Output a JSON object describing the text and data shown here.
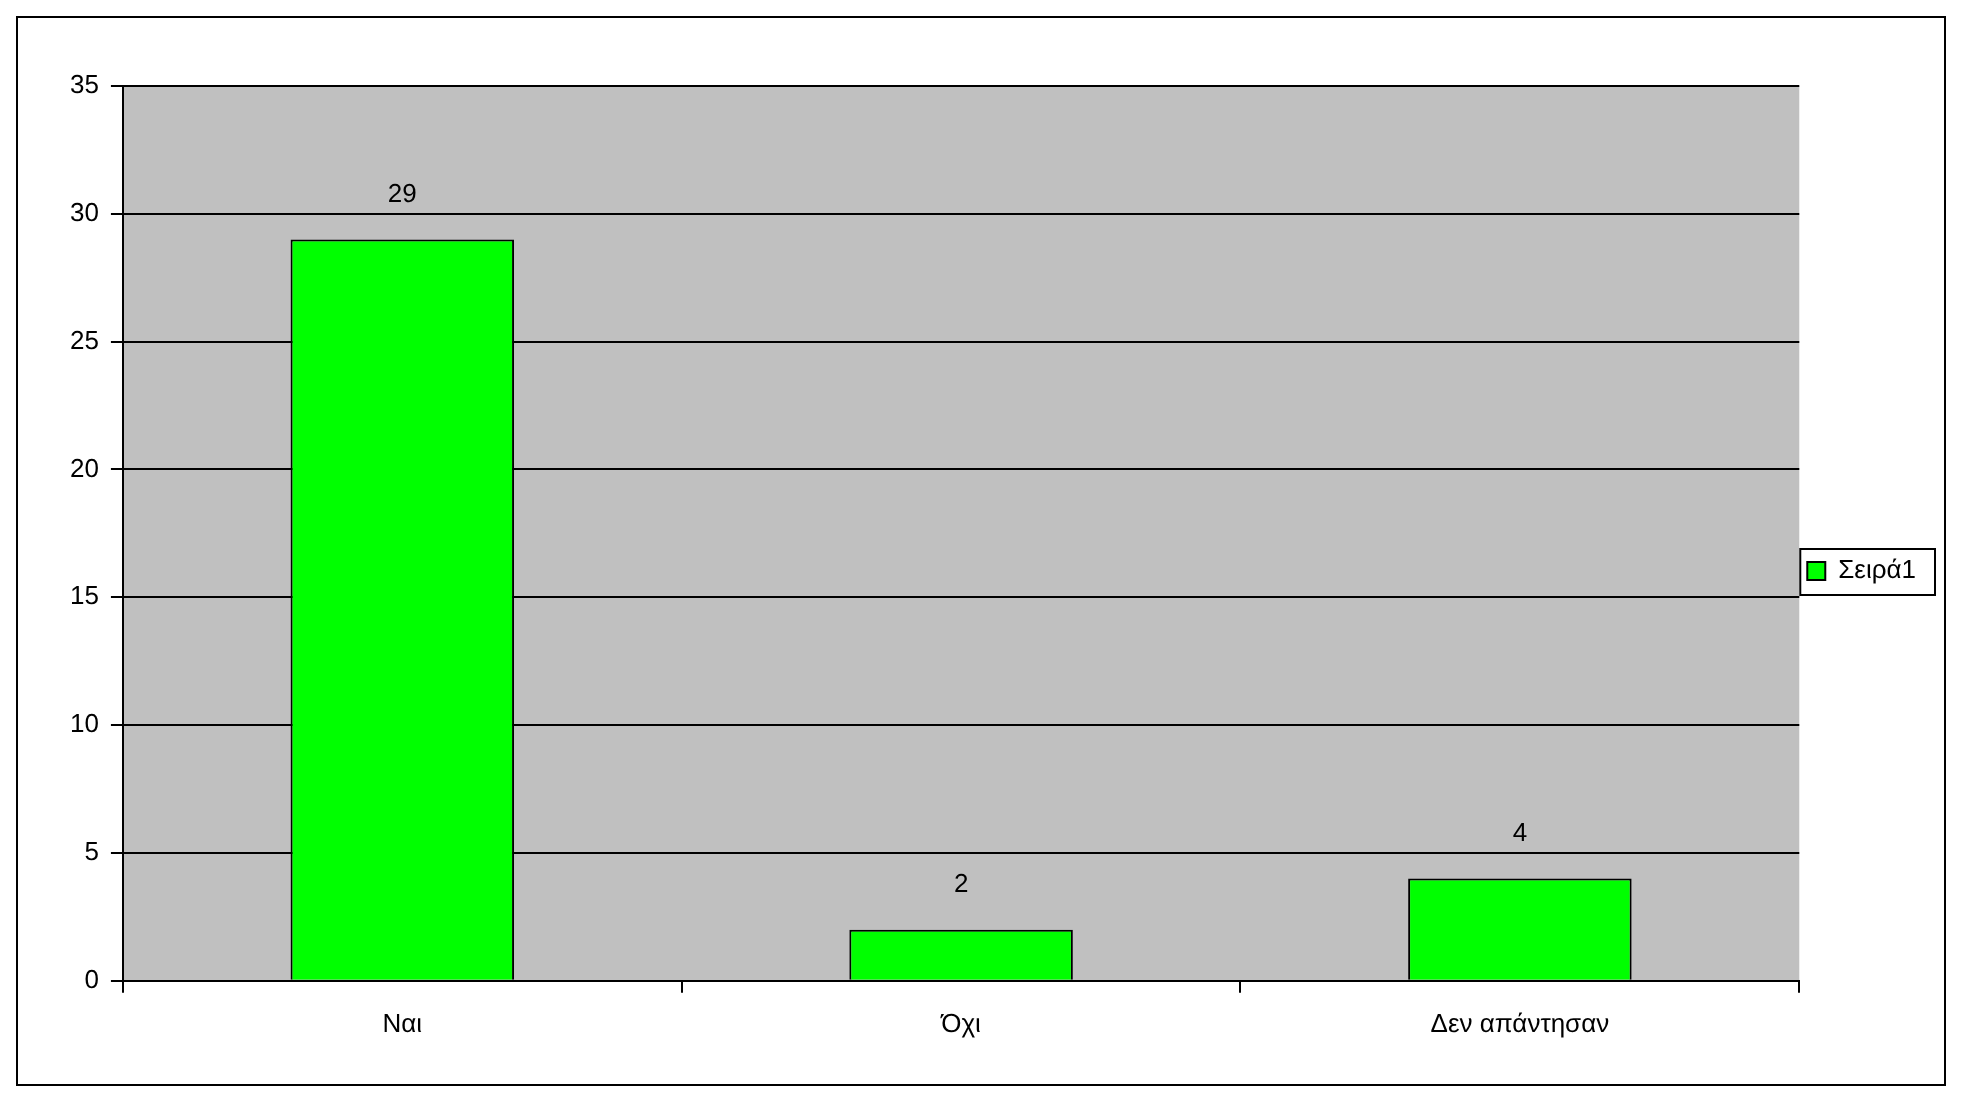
{
  "chart_data": {
    "type": "bar",
    "categories": [
      "Ναι",
      "Όχι",
      "Δεν απάντησαν"
    ],
    "series": [
      {
        "name": "Σειρά1",
        "color": "#00ff00",
        "values": [
          29,
          2,
          4
        ]
      }
    ],
    "ylim": [
      0,
      35
    ],
    "yticks": [
      0,
      5,
      10,
      15,
      20,
      25,
      30,
      35
    ],
    "grid": "y",
    "legend": "right",
    "data_labels": true
  }
}
